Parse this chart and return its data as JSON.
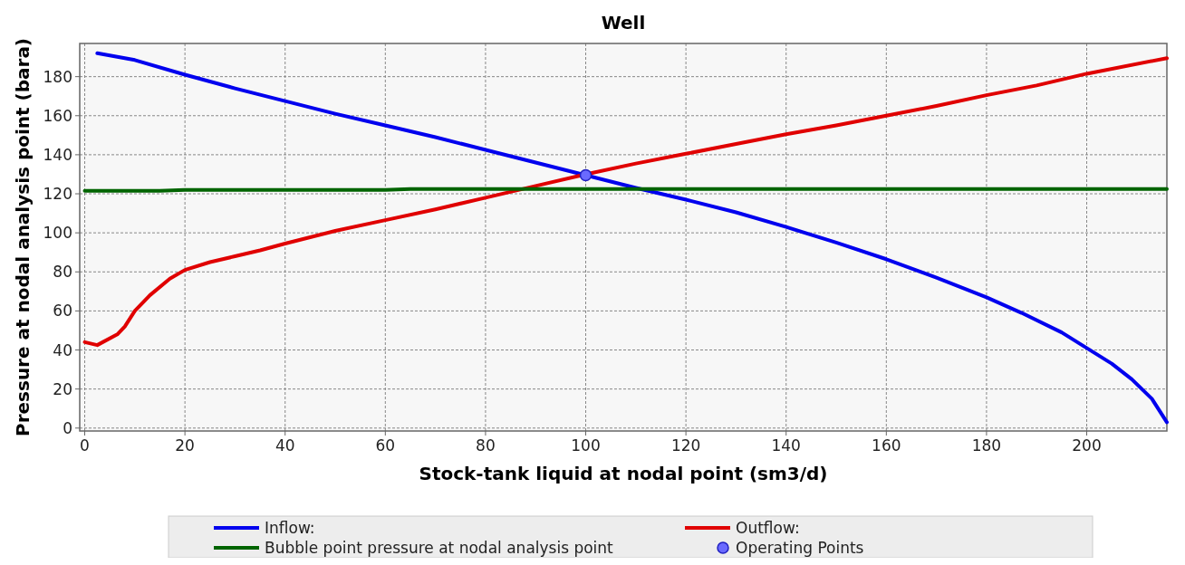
{
  "chart_data": {
    "type": "line",
    "title": "Well",
    "xlabel": "Stock-tank liquid at nodal point (sm3/d)",
    "ylabel": "Pressure at nodal analysis point (bara)",
    "xlim": [
      -1,
      216
    ],
    "xticks": [
      0,
      20,
      40,
      60,
      80,
      100,
      120,
      140,
      160,
      180,
      200
    ],
    "ylim": [
      -1.5,
      197
    ],
    "yticks": [
      0,
      20,
      40,
      60,
      80,
      100,
      120,
      140,
      160,
      180
    ],
    "grid": true,
    "legend": "bottom",
    "line_style": "solid",
    "series": [
      {
        "name": "Inflow:",
        "color": "#0000ee",
        "x": [
          2.5,
          10,
          20,
          30,
          40,
          50,
          60,
          70,
          80,
          90,
          100,
          110,
          120,
          130,
          140,
          150,
          160,
          170,
          180,
          187,
          195,
          200,
          205,
          209,
          213,
          216
        ],
        "values": [
          192,
          188.5,
          181,
          174,
          167.5,
          161,
          155,
          149,
          142.5,
          136,
          129.5,
          123,
          117,
          110.5,
          103,
          95,
          86.5,
          77,
          67,
          59,
          49,
          41,
          33,
          25,
          15,
          3
        ]
      },
      {
        "name": "Outflow:",
        "color": "#e00000",
        "x": [
          0,
          2.5,
          6.5,
          8,
          10,
          13,
          17,
          20,
          25,
          30,
          35,
          40,
          50,
          60,
          70,
          80,
          90,
          100,
          110,
          120,
          130,
          140,
          150,
          160,
          170,
          180,
          190,
          200,
          216
        ],
        "values": [
          44,
          42.5,
          48,
          52,
          60,
          68,
          76.5,
          81,
          85,
          88,
          91,
          94.5,
          101,
          106.5,
          112,
          118,
          124,
          130,
          135.5,
          140.5,
          145.5,
          150.5,
          155,
          160,
          165,
          170.5,
          175.5,
          181.5,
          189.5
        ]
      },
      {
        "name": "Bubble point pressure at nodal analysis point",
        "color": "#006400",
        "x": [
          0,
          15,
          20,
          60,
          65,
          216
        ],
        "values": [
          121.5,
          121.5,
          122,
          122,
          122.5,
          122.5
        ]
      },
      {
        "name": "Operating Points",
        "type": "scatter",
        "marker": "circle",
        "color": "#6a6aff",
        "x": [
          100
        ],
        "values": [
          129.5
        ]
      }
    ]
  }
}
